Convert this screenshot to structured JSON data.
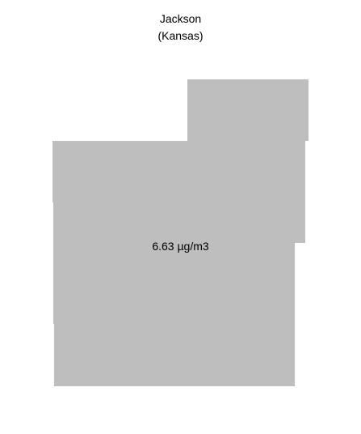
{
  "map": {
    "county": "Jackson",
    "state": "(Kansas)",
    "value_label": "6.63 µg/m3",
    "fill_color": "#bebebe",
    "background_color": "#ffffff"
  }
}
